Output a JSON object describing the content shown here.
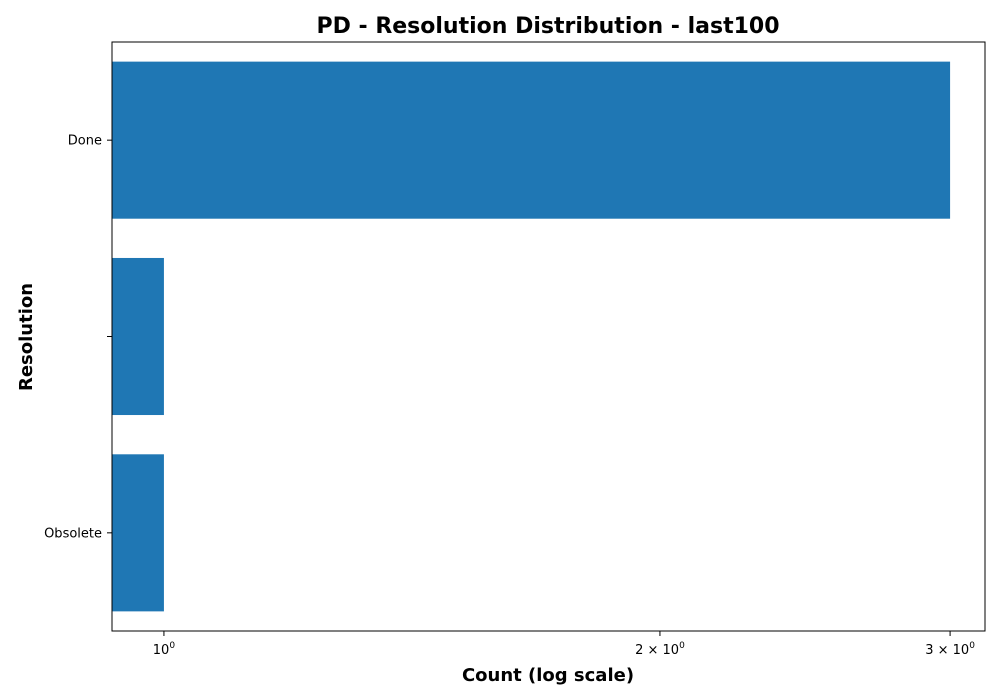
{
  "chart_data": {
    "type": "bar",
    "orientation": "horizontal",
    "title": "PD - Resolution Distribution - last100",
    "xlabel": "Count (log scale)",
    "ylabel": "Resolution",
    "x_scale": "log",
    "xlim": [
      0.93,
      3.15
    ],
    "grid": false,
    "categories": [
      "Done",
      "",
      "Obsolete"
    ],
    "values": [
      3,
      1,
      1
    ],
    "bar_color": "#1f77b4",
    "x_ticks": [
      {
        "value": 1,
        "coef": "",
        "base": "10",
        "exp": "0"
      },
      {
        "value": 2,
        "coef": "2 × ",
        "base": "10",
        "exp": "0"
      },
      {
        "value": 3,
        "coef": "3 × ",
        "base": "10",
        "exp": "0"
      }
    ]
  }
}
